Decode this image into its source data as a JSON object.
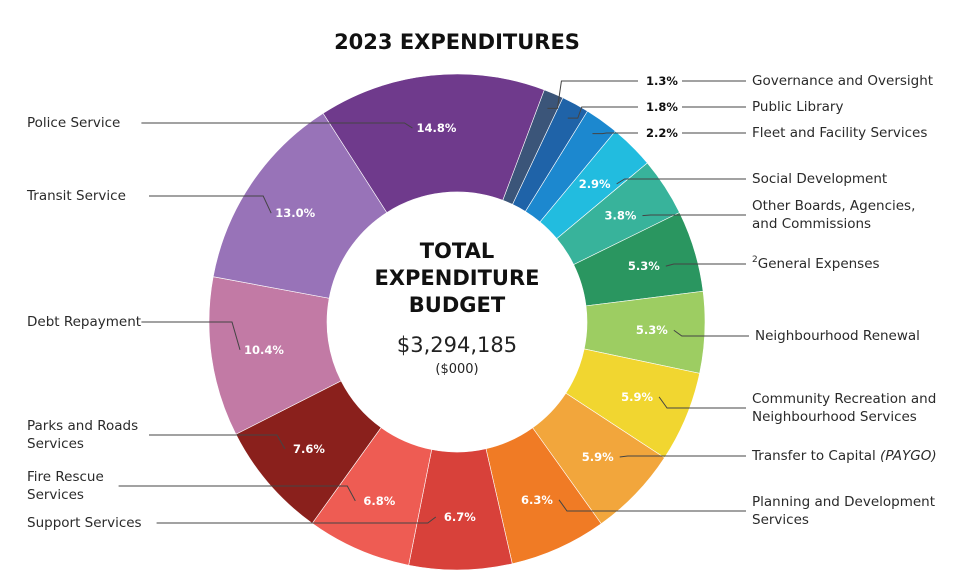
{
  "chart_data": {
    "type": "pie",
    "variant": "donut",
    "title": "2023 EXPENDITURES",
    "center": {
      "title_lines": [
        "TOTAL",
        "EXPENDITURE",
        "BUDGET"
      ],
      "value": "$3,294,185",
      "unit": "($000)"
    },
    "slices": [
      {
        "label": "Governance and Oversight",
        "value": 1.3,
        "display": "1.3%",
        "color": "#3b5579",
        "label_side": "right",
        "pct_outside": true
      },
      {
        "label": "Public Library",
        "value": 1.8,
        "display": "1.8%",
        "color": "#1f63a8",
        "label_side": "right",
        "pct_outside": true
      },
      {
        "label": "Fleet and Facility Services",
        "value": 2.2,
        "display": "2.2%",
        "color": "#1c88cf",
        "label_side": "right",
        "pct_outside": true
      },
      {
        "label": "Social Development",
        "value": 2.9,
        "display": "2.9%",
        "color": "#22bcdf",
        "label_side": "right",
        "pct_outside": false
      },
      {
        "label": "Other Boards, Agencies, and Commissions",
        "label_lines": [
          "Other Boards, Agencies,",
          "and Commissions"
        ],
        "value": 3.8,
        "display": "3.8%",
        "color": "#38b39b",
        "label_side": "right",
        "pct_outside": false
      },
      {
        "label": "General Expenses",
        "superscript": "2",
        "value": 5.3,
        "display": "5.3%",
        "color": "#2a9660",
        "label_side": "right",
        "pct_outside": false
      },
      {
        "label": "Neighbourhood Renewal",
        "value": 5.3,
        "display": "5.3%",
        "color": "#9dcd62",
        "label_side": "right",
        "pct_outside": false
      },
      {
        "label": "Community Recreation and Neighbourhood Services",
        "label_lines": [
          "Community Recreation and",
          "Neighbourhood Services"
        ],
        "value": 5.9,
        "display": "5.9%",
        "color": "#f1d630",
        "label_side": "right",
        "pct_outside": false
      },
      {
        "label": "Transfer to Capital (PAYGO)",
        "label_main": "Transfer to Capital ",
        "label_italic": "(PAYGO)",
        "value": 5.9,
        "display": "5.9%",
        "color": "#f2a63c",
        "label_side": "right",
        "pct_outside": false
      },
      {
        "label": "Planning and Development Services",
        "label_lines": [
          "Planning and Development",
          "Services"
        ],
        "value": 6.3,
        "display": "6.3%",
        "color": "#f07b25",
        "label_side": "right",
        "pct_outside": false
      },
      {
        "label": "Support Services",
        "value": 6.7,
        "display": "6.7%",
        "color": "#d8413a",
        "label_side": "left",
        "pct_outside": false
      },
      {
        "label": "Fire Rescue Services",
        "label_lines": [
          "Fire Rescue",
          "Services"
        ],
        "value": 6.8,
        "display": "6.8%",
        "color": "#ee5c53",
        "label_side": "left",
        "pct_outside": false
      },
      {
        "label": "Parks and Roads Services",
        "label_lines": [
          "Parks and Roads",
          "Services"
        ],
        "value": 7.6,
        "display": "7.6%",
        "color": "#8a201c",
        "label_side": "left",
        "pct_outside": false
      },
      {
        "label": "Debt Repayment",
        "value": 10.4,
        "display": "10.4%",
        "color": "#c27aa5",
        "label_side": "left",
        "pct_outside": false
      },
      {
        "label": "Transit Service",
        "value": 13.0,
        "display": "13.0%",
        "color": "#9873b8",
        "label_side": "left",
        "pct_outside": false
      },
      {
        "label": "Police Service",
        "value": 14.8,
        "display": "14.8%",
        "color": "#6f3a8c",
        "label_side": "left",
        "pct_outside": false
      }
    ]
  }
}
